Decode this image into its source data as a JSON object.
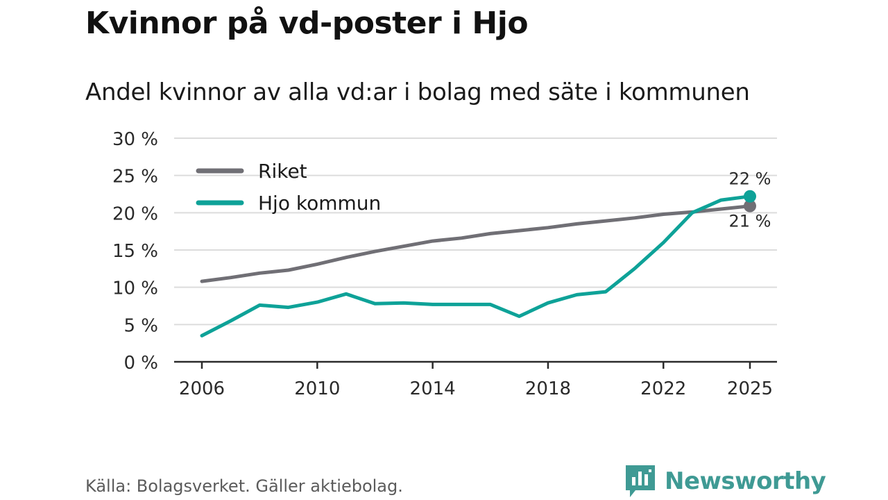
{
  "title": "Kvinnor på vd-poster i Hjo",
  "subtitle": "Andel kvinnor av alla vd:ar i bolag med säte i kommunen",
  "source": "Källa: Bolagsverket. Gäller aktiebolag.",
  "brand": "Newsworthy",
  "chart_data": {
    "type": "line",
    "title": "Kvinnor på vd-poster i Hjo",
    "subtitle": "Andel kvinnor av alla vd:ar i bolag med säte i kommunen",
    "xlabel": "",
    "ylabel": "",
    "x": [
      2006,
      2007,
      2008,
      2009,
      2010,
      2011,
      2012,
      2013,
      2014,
      2015,
      2016,
      2017,
      2018,
      2019,
      2020,
      2021,
      2022,
      2023,
      2024,
      2025
    ],
    "xlim": [
      2006,
      2025
    ],
    "ylim": [
      0,
      30
    ],
    "x_ticks": [
      "2006",
      "2010",
      "2014",
      "2018",
      "2022",
      "2025"
    ],
    "y_ticks": [
      "0 %",
      "5 %",
      "10 %",
      "15 %",
      "20 %",
      "25 %",
      "30 %"
    ],
    "y_tick_values": [
      0,
      5,
      10,
      15,
      20,
      25,
      30
    ],
    "grid": true,
    "legend_position": "top-left",
    "series": [
      {
        "name": "Riket",
        "color": "#706f75",
        "values": [
          10.8,
          11.3,
          11.9,
          12.3,
          13.1,
          14.0,
          14.8,
          15.5,
          16.2,
          16.6,
          17.2,
          17.6,
          18.0,
          18.5,
          18.9,
          19.3,
          19.8,
          20.1,
          20.5,
          20.9
        ],
        "end_label": "21 %"
      },
      {
        "name": "Hjo kommun",
        "color": "#0ea298",
        "values": [
          3.5,
          5.5,
          7.6,
          7.3,
          8.0,
          9.1,
          7.8,
          7.9,
          7.7,
          7.7,
          7.7,
          6.1,
          7.9,
          9.0,
          9.4,
          12.5,
          16.0,
          20.0,
          21.7,
          22.2
        ],
        "end_label": "22 %"
      }
    ]
  }
}
